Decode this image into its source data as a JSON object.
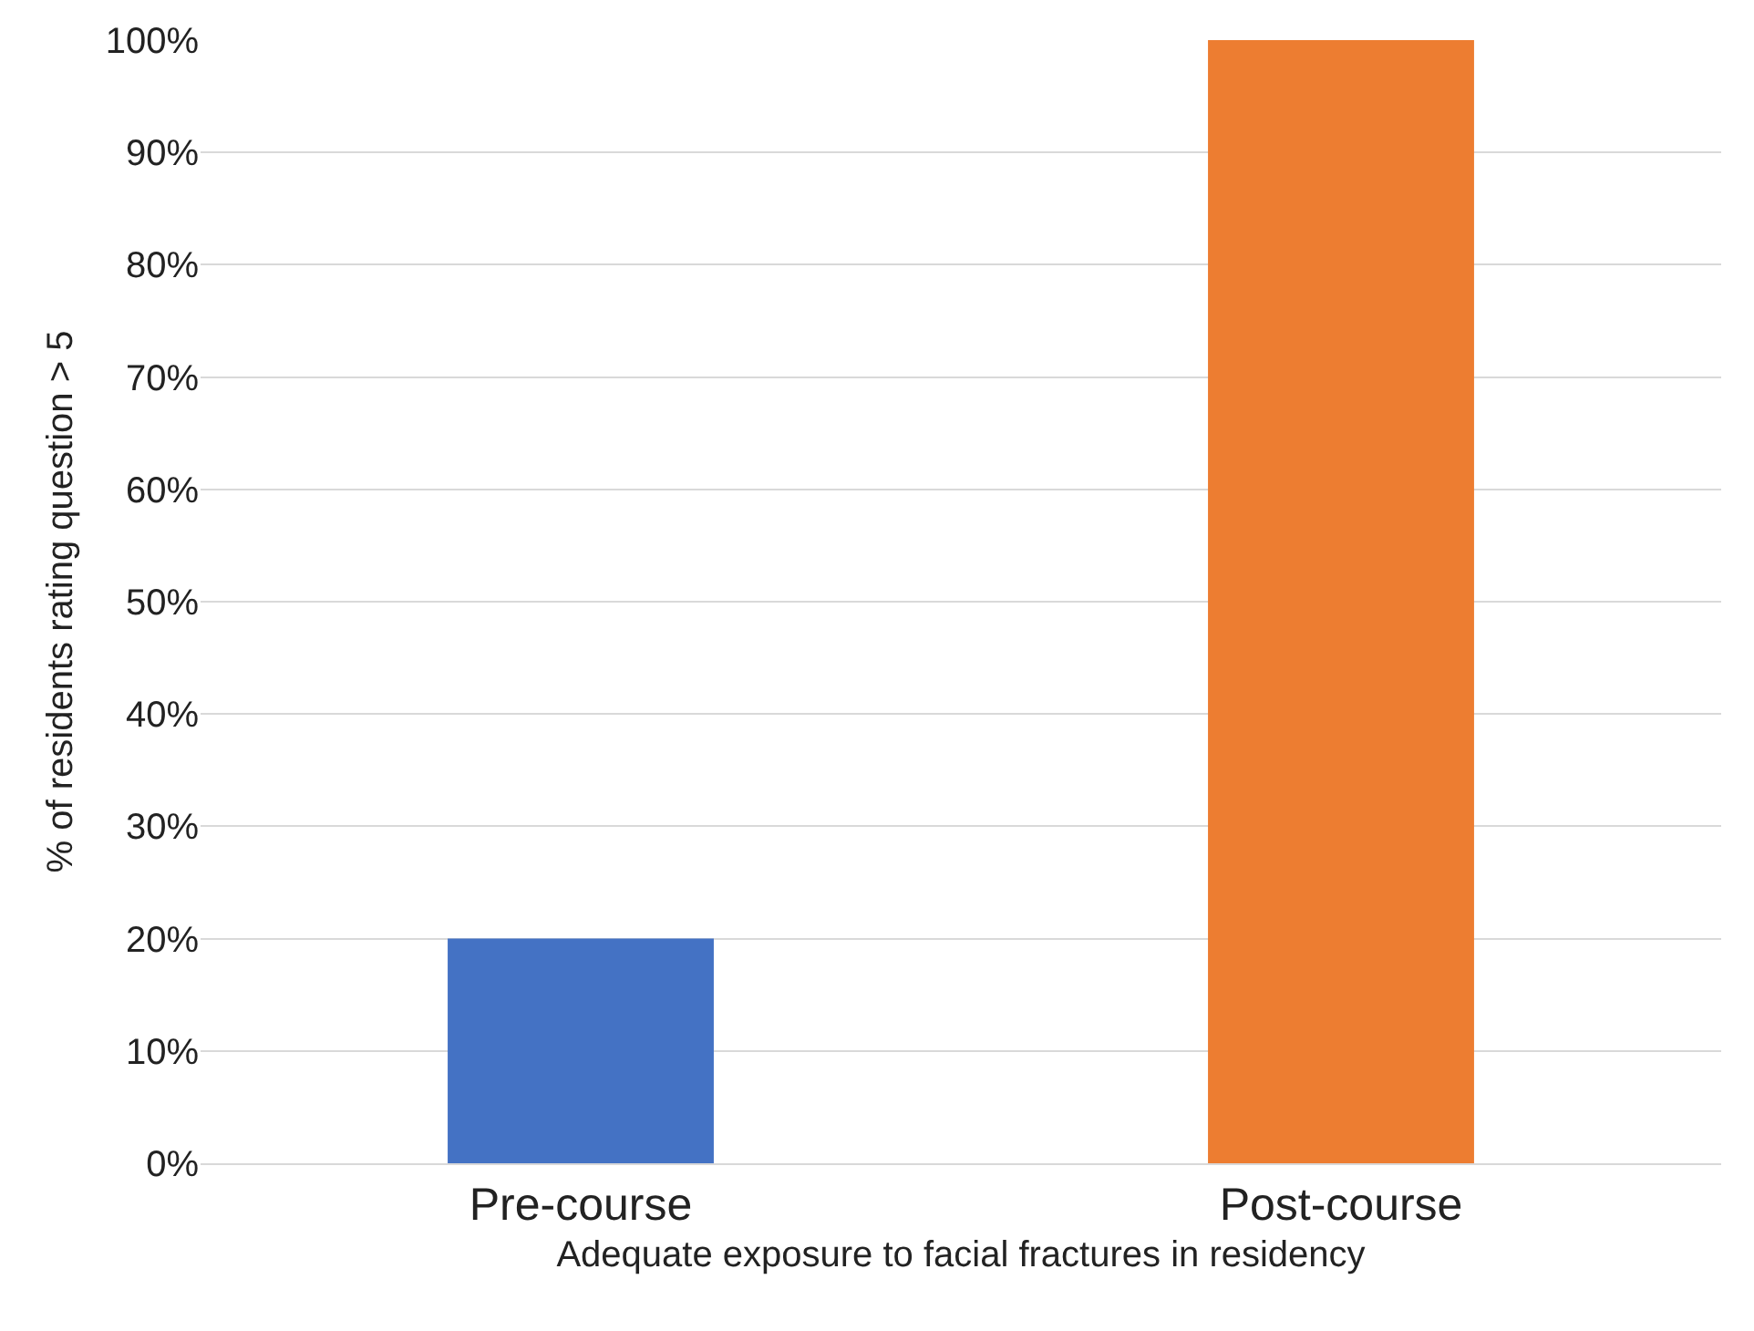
{
  "chart_data": {
    "type": "bar",
    "xlabel": "Adequate exposure to facial fractures in residency",
    "ylabel": "% of residents rating question > 5",
    "categories": [
      "Pre-course",
      "Post-course"
    ],
    "values": [
      20,
      100
    ],
    "colors": [
      "#4472c4",
      "#ed7d31"
    ],
    "ylim": [
      0,
      100
    ],
    "yticks": [
      {
        "value": 0,
        "label": "0%"
      },
      {
        "value": 10,
        "label": "10%"
      },
      {
        "value": 20,
        "label": "20%"
      },
      {
        "value": 30,
        "label": "30%"
      },
      {
        "value": 40,
        "label": "40%"
      },
      {
        "value": 50,
        "label": "50%"
      },
      {
        "value": 60,
        "label": "60%"
      },
      {
        "value": 70,
        "label": "70%"
      },
      {
        "value": 80,
        "label": "80%"
      },
      {
        "value": 90,
        "label": "90%"
      },
      {
        "value": 100,
        "label": "100%"
      }
    ],
    "grid": "y"
  }
}
